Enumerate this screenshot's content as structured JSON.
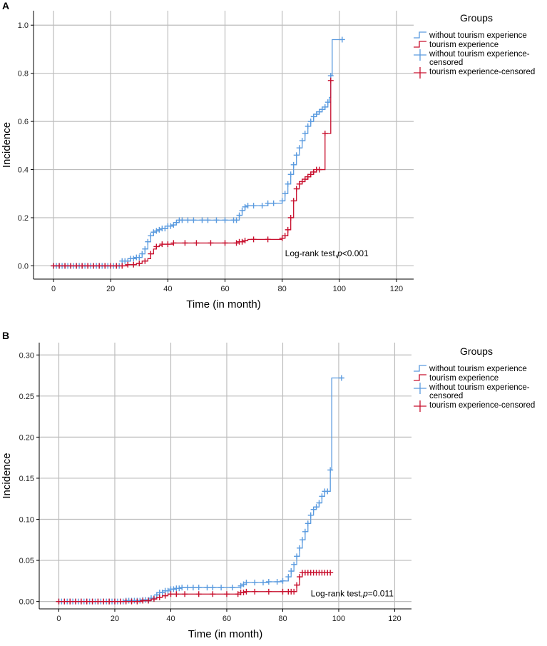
{
  "chart_data": [
    {
      "panel_label": "A",
      "type": "line",
      "step": true,
      "title": "",
      "xlabel": "Time (in month)",
      "ylabel": "Incidence",
      "xlim": [
        -7,
        126
      ],
      "ylim": [
        -0.055,
        1.06
      ],
      "xticks": [
        0,
        20,
        40,
        60,
        80,
        100,
        120
      ],
      "yticks": [
        0.0,
        0.2,
        0.4,
        0.6,
        0.8,
        1.0
      ],
      "ytick_labels": [
        "0.0",
        "0.2",
        "0.4",
        "0.6",
        "0.8",
        "1.0"
      ],
      "legend": {
        "title": "Groups",
        "position": "right",
        "entries": [
          "without tourism experience",
          "tourism experience",
          "without tourism experience-\ncensored",
          "tourism experience-censored"
        ]
      },
      "annotation": {
        "text_prefix": "Log-rank test,",
        "p_symbol": "p",
        "p_value": "<0.001",
        "x": 81,
        "y": 0.04
      },
      "series": [
        {
          "name": "without tourism experience",
          "color": "#5b9bdf",
          "x": [
            0,
            22,
            24,
            27,
            29,
            31,
            32,
            33,
            34,
            35,
            36,
            37,
            38,
            40,
            42,
            43,
            44,
            64,
            65,
            66,
            67,
            68,
            75,
            80,
            81,
            82,
            83,
            84,
            85,
            86,
            87,
            88,
            89,
            90,
            91,
            92,
            93,
            94,
            95,
            96,
            96.5,
            97,
            97.5,
            101
          ],
          "y": [
            0,
            0,
            0.02,
            0.03,
            0.035,
            0.05,
            0.07,
            0.1,
            0.125,
            0.14,
            0.145,
            0.15,
            0.155,
            0.165,
            0.17,
            0.18,
            0.19,
            0.19,
            0.21,
            0.23,
            0.245,
            0.25,
            0.26,
            0.27,
            0.3,
            0.34,
            0.38,
            0.42,
            0.46,
            0.49,
            0.52,
            0.55,
            0.58,
            0.6,
            0.62,
            0.63,
            0.64,
            0.65,
            0.66,
            0.68,
            0.7,
            0.79,
            0.94,
            0.94
          ],
          "censor_x": [
            0,
            1,
            2,
            3,
            4,
            5,
            6,
            7,
            8,
            9,
            10,
            11,
            12,
            13,
            14,
            15,
            16,
            17,
            18,
            19,
            20,
            21,
            22,
            23,
            24,
            25,
            26,
            27,
            28,
            29,
            30,
            31,
            32,
            33,
            34,
            35,
            36,
            37,
            38,
            39,
            40,
            41,
            42,
            43,
            44,
            45,
            47,
            49,
            52,
            54,
            57,
            60,
            63,
            64,
            65,
            66,
            67,
            68,
            70,
            73,
            75,
            77,
            80,
            81,
            82,
            83,
            84,
            85,
            86,
            87,
            88,
            89,
            90,
            91,
            92,
            93,
            94,
            95,
            96,
            97,
            101
          ]
        },
        {
          "name": "tourism experience",
          "color": "#c8102e",
          "x": [
            0,
            22,
            26,
            29,
            31,
            33,
            34,
            35,
            36,
            37,
            38,
            42,
            64,
            65,
            67,
            68,
            75,
            80,
            81,
            82,
            83,
            84,
            85,
            86,
            87,
            88,
            89,
            90,
            91,
            92,
            93,
            94,
            95,
            96,
            97
          ],
          "y": [
            0,
            0,
            0.005,
            0.01,
            0.02,
            0.03,
            0.05,
            0.07,
            0.08,
            0.085,
            0.09,
            0.095,
            0.095,
            0.1,
            0.105,
            0.11,
            0.11,
            0.115,
            0.125,
            0.15,
            0.2,
            0.27,
            0.32,
            0.34,
            0.35,
            0.36,
            0.37,
            0.38,
            0.39,
            0.4,
            0.4,
            0.4,
            0.55,
            0.55,
            0.77
          ],
          "censor_x": [
            0,
            2,
            4,
            6,
            8,
            10,
            12,
            14,
            16,
            18,
            20,
            22,
            24,
            26,
            28,
            30,
            32,
            34,
            36,
            38,
            40,
            42,
            46,
            50,
            55,
            60,
            64,
            65,
            66,
            67,
            70,
            75,
            80,
            81,
            82,
            83,
            84,
            85,
            86,
            87,
            88,
            89,
            90,
            91,
            92,
            93,
            95,
            97
          ]
        }
      ]
    },
    {
      "panel_label": "B",
      "type": "line",
      "step": true,
      "title": "",
      "xlabel": "Time (in month)",
      "ylabel": "Incidence",
      "xlim": [
        -7,
        126
      ],
      "ylim": [
        -0.009,
        0.315
      ],
      "xticks": [
        0,
        20,
        40,
        60,
        80,
        100,
        120
      ],
      "yticks": [
        0.0,
        0.05,
        0.1,
        0.15,
        0.2,
        0.25,
        0.3
      ],
      "ytick_labels": [
        "0.00",
        "0.05",
        "0.10",
        "0.15",
        "0.20",
        "0.25",
        "0.30"
      ],
      "legend": {
        "title": "Groups",
        "position": "right",
        "entries": [
          "without tourism experience",
          "tourism experience",
          "without tourism experience-\ncensored",
          "tourism experience-censored"
        ]
      },
      "annotation": {
        "text_prefix": "Log-rank test,",
        "p_symbol": "p",
        "p_value": "=0.011",
        "x": 90,
        "y": 0.006
      },
      "series": [
        {
          "name": "without tourism experience",
          "color": "#5b9bdf",
          "x": [
            0,
            22,
            24,
            30,
            33,
            35,
            36,
            38,
            40,
            42,
            44,
            64,
            65,
            66,
            67,
            75,
            80,
            82,
            83,
            84,
            85,
            86,
            87,
            88,
            89,
            90,
            91,
            92,
            93,
            94,
            95,
            96,
            97,
            97.5,
            101
          ],
          "y": [
            0,
            0,
            0.001,
            0.002,
            0.004,
            0.008,
            0.011,
            0.013,
            0.015,
            0.016,
            0.017,
            0.017,
            0.019,
            0.021,
            0.023,
            0.024,
            0.025,
            0.03,
            0.037,
            0.045,
            0.055,
            0.065,
            0.075,
            0.085,
            0.095,
            0.105,
            0.112,
            0.115,
            0.12,
            0.128,
            0.134,
            0.134,
            0.16,
            0.272,
            0.272
          ],
          "censor_x": [
            0,
            1,
            2,
            3,
            4,
            5,
            6,
            7,
            8,
            9,
            10,
            11,
            12,
            13,
            14,
            15,
            16,
            17,
            18,
            19,
            20,
            21,
            22,
            23,
            24,
            25,
            26,
            27,
            28,
            29,
            30,
            31,
            32,
            33,
            34,
            35,
            36,
            37,
            38,
            39,
            40,
            41,
            42,
            43,
            44,
            46,
            48,
            50,
            53,
            55,
            58,
            62,
            65,
            66,
            67,
            70,
            73,
            75,
            78,
            80,
            82,
            83,
            84,
            85,
            86,
            87,
            88,
            89,
            90,
            91,
            92,
            93,
            94,
            95,
            96,
            97,
            101
          ]
        },
        {
          "name": "tourism experience",
          "color": "#c8102e",
          "x": [
            0,
            22,
            30,
            33,
            35,
            37,
            39,
            64,
            65,
            67,
            83,
            85,
            86,
            87,
            97
          ],
          "y": [
            0,
            0,
            0.001,
            0.003,
            0.005,
            0.007,
            0.009,
            0.009,
            0.011,
            0.012,
            0.012,
            0.02,
            0.03,
            0.035,
            0.035
          ],
          "censor_x": [
            0,
            2,
            4,
            6,
            8,
            10,
            12,
            14,
            16,
            18,
            20,
            22,
            24,
            26,
            28,
            30,
            32,
            34,
            36,
            38,
            40,
            42,
            45,
            50,
            55,
            60,
            64,
            65,
            66,
            67,
            70,
            75,
            80,
            82,
            83,
            84,
            85,
            86,
            87,
            88,
            89,
            90,
            91,
            92,
            93,
            94,
            95,
            96,
            97
          ]
        }
      ]
    }
  ]
}
